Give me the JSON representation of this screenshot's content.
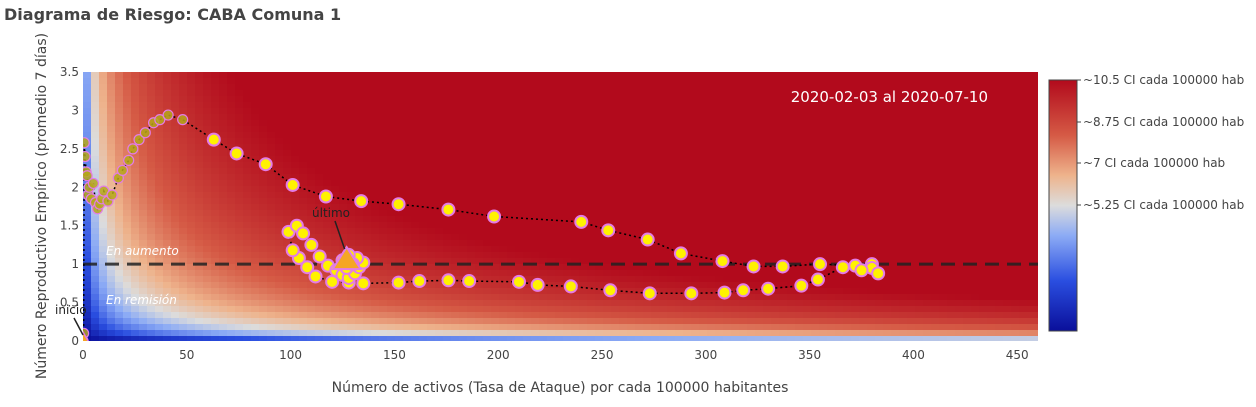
{
  "chart_data": {
    "type": "scatter",
    "title": "Diagrama de Riesgo: CABA Comuna 1",
    "xlabel": "Número de activos (Tasa de Ataque) por cada 100000 habitantes",
    "ylabel": "Número Reproductivo Empírico (promedio 7 días)",
    "xlim": [
      0,
      460
    ],
    "ylim": [
      0,
      3.5
    ],
    "x_ticks": [
      0,
      50,
      100,
      150,
      200,
      250,
      300,
      350,
      400,
      450
    ],
    "y_ticks": [
      0,
      0.5,
      1,
      1.5,
      2,
      2.5,
      3,
      3.5
    ],
    "date_range_label": "2020-02-03 al 2020-07-10",
    "threshold_line": {
      "y": 1
    },
    "region_labels": {
      "above": "En aumento",
      "below": "En remisión"
    },
    "start_label": "inicio",
    "end_label": "último",
    "colors": {
      "background_low": "#0a14a0",
      "background_mid": "#f2f2f2",
      "background_high": "#b20a1c",
      "early_marker_fill": "#b5a71a",
      "late_marker_fill": "#fff200",
      "late_marker_edge": "#e37ce6",
      "triangle": "#f5a623",
      "path_line": "#000000"
    },
    "colorbar": {
      "labels": [
        "~10.5 CI cada 100000 hab",
        "~8.75 CI cada 100000 hab",
        "~7 CI cada 100000 hab",
        "~5.25 CI cada 100000 hab"
      ]
    },
    "series": [
      {
        "x": [
          0,
          0.3,
          0.6,
          1,
          1.5,
          2,
          2.5,
          3,
          4,
          5,
          6,
          7,
          8,
          9,
          10,
          12,
          14,
          17,
          19,
          22,
          24,
          27,
          30,
          34,
          37,
          41,
          48,
          63,
          74,
          88,
          101,
          117,
          134,
          152,
          176,
          198,
          240,
          253,
          272,
          288,
          308,
          323,
          337,
          355,
          372,
          380
        ],
        "y": [
          0,
          0.1,
          2.58,
          2.4,
          2.2,
          2.15,
          1.9,
          2.0,
          1.85,
          2.05,
          1.8,
          1.72,
          1.78,
          1.85,
          1.95,
          1.82,
          1.9,
          2.12,
          2.22,
          2.35,
          2.5,
          2.62,
          2.71,
          2.84,
          2.88,
          2.94,
          2.88,
          2.62,
          2.44,
          2.3,
          2.03,
          1.88,
          1.82,
          1.78,
          1.71,
          1.62,
          1.55,
          1.44,
          1.32,
          1.14,
          1.04,
          0.97,
          0.97,
          1.0,
          0.98,
          1.0
        ]
      },
      {
        "x": [
          380,
          383,
          375,
          366,
          354,
          346,
          330,
          318,
          309,
          293,
          273,
          254,
          235,
          219,
          210,
          186,
          176,
          162,
          152,
          135,
          128,
          120,
          112,
          108,
          104,
          101,
          99,
          103,
          106,
          110,
          114,
          118,
          122,
          125,
          128,
          131,
          133,
          135,
          132,
          128,
          125,
          127,
          130,
          127
        ],
        "y": [
          0.95,
          0.88,
          0.92,
          0.96,
          0.8,
          0.72,
          0.68,
          0.66,
          0.63,
          0.62,
          0.62,
          0.66,
          0.71,
          0.73,
          0.77,
          0.78,
          0.79,
          0.78,
          0.76,
          0.75,
          0.76,
          0.77,
          0.84,
          0.96,
          1.08,
          1.18,
          1.42,
          1.5,
          1.4,
          1.25,
          1.1,
          0.98,
          0.92,
          0.86,
          0.82,
          0.88,
          0.96,
          1.02,
          1.08,
          1.12,
          1.05,
          0.95,
          1.0,
          1.04
        ]
      }
    ]
  }
}
